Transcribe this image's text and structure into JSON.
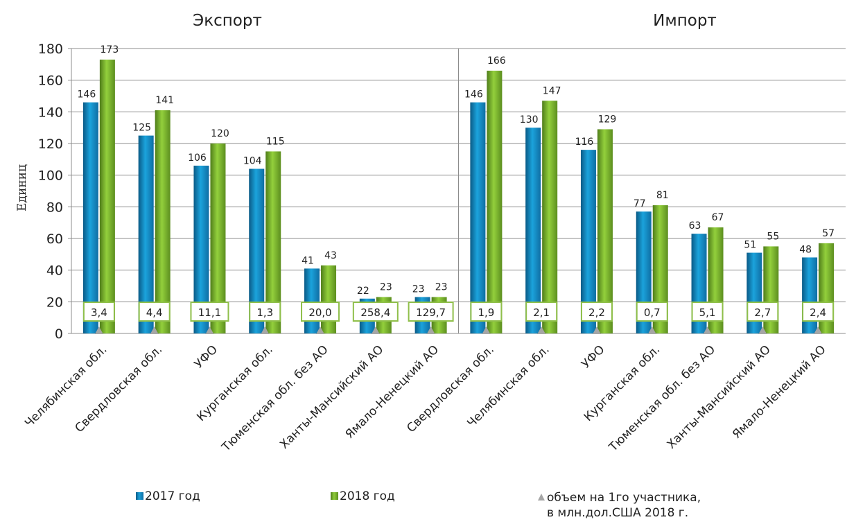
{
  "chart_data": {
    "type": "bar",
    "ylabel": "Единиц",
    "ylim": [
      0,
      180
    ],
    "yticks": [
      0,
      20,
      40,
      60,
      80,
      100,
      120,
      140,
      160,
      180
    ],
    "grid": true,
    "legend_position": "bottom",
    "panels": [
      {
        "title": "Экспорт",
        "categories": [
          "Челябинская обл.",
          "Свердловская обл.",
          "УФО",
          "Курганская обл.",
          "Тюменская обл. без АО",
          "Ханты-Мансийский АО",
          "Ямало-Ненецкий АО"
        ],
        "series": [
          {
            "name": "2017 год",
            "values": [
              146,
              125,
              106,
              104,
              41,
              22,
              23
            ]
          },
          {
            "name": "2018 год",
            "values": [
              173,
              141,
              120,
              115,
              43,
              23,
              23
            ]
          }
        ],
        "box_labels": [
          "3,4",
          "4,4",
          "11,1",
          "1,3",
          "20,0",
          "258,4",
          "129,7"
        ]
      },
      {
        "title": "Импорт",
        "categories": [
          "Свердловская обл.",
          "Челябинская обл.",
          "УФО",
          "Курганская обл.",
          "Тюменская обл. без АО",
          "Ханты-Мансийский АО",
          "Ямало-Ненецкий АО"
        ],
        "series": [
          {
            "name": "2017 год",
            "values": [
              146,
              130,
              116,
              77,
              63,
              51,
              48
            ]
          },
          {
            "name": "2018 год",
            "values": [
              166,
              147,
              129,
              81,
              67,
              55,
              57
            ]
          }
        ],
        "box_labels": [
          "1,9",
          "2,1",
          "2,2",
          "0,7",
          "5,1",
          "2,7",
          "2,4"
        ]
      }
    ],
    "colors": {
      "s2017": "#1b9fd8",
      "s2018": "#8fcc3a",
      "marker": "#a6a6a6",
      "box_border": "#8fbf4a"
    }
  },
  "legend": {
    "s2017": "2017 год",
    "s2018": "2018 год",
    "marker_line1": "объем на 1го участника,",
    "marker_line2": "в млн.дол.США  2018 г."
  }
}
